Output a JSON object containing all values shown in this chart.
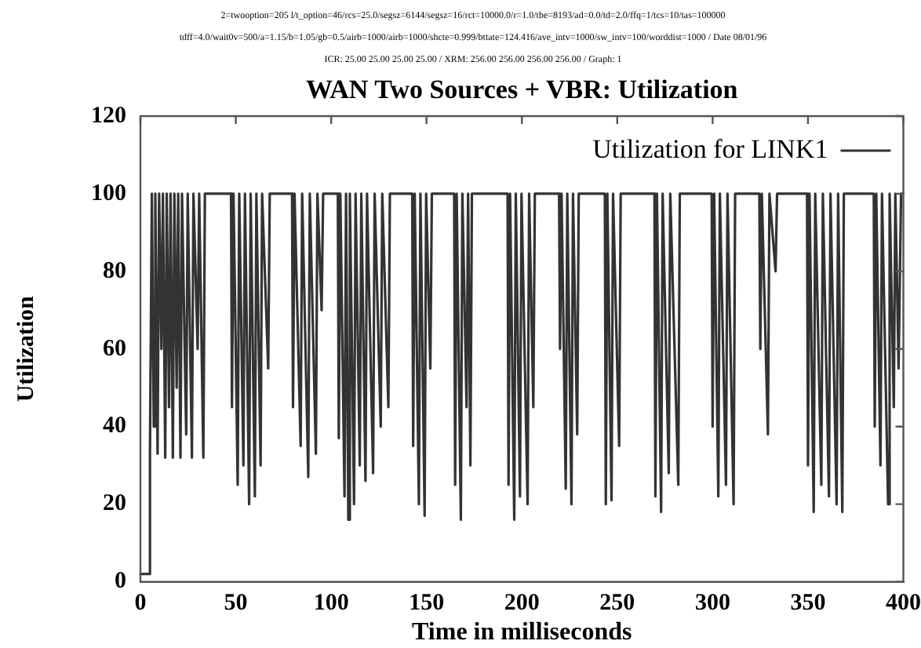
{
  "chart_data": {
    "type": "line",
    "title": "WAN Two Sources + VBR: Utilization",
    "annotations": [
      "2=twooption=205 l/t_option=46/rcs=25.0/segsz=6144/segsz=16/rct=10000.0/r=1.0/tbe=8193/ad=0.0/td=2.0/ffq=1/tcs=10/tas=100000",
      "tdff=4.0/wait0v=500/a=1.15/b=1.05/gb=0.5/airb=1000/airb=1000/shcte=0.999/bttate=124.416/ave_intv=1000/sw_intv=100/worddist=1000 / Date 08/01/96",
      "ICR: 25.00 25.00 25.00 25.00 / XRM: 256.00 256.00 256.00 256.00 / Graph: 1"
    ],
    "xlabel": "Time in milliseconds",
    "ylabel": "Utilization",
    "xlim": [
      0,
      400
    ],
    "xticks": [
      0,
      50,
      100,
      150,
      200,
      250,
      300,
      350,
      400
    ],
    "ylim": [
      0,
      120
    ],
    "yticks": [
      0,
      20,
      40,
      60,
      80,
      100,
      120
    ],
    "grid": false,
    "legend": "top right",
    "marker": "none",
    "line_style": "solid",
    "series": [
      {
        "name": "Utilization for LINK1",
        "color": "#333333",
        "x": [
          0,
          5,
          5,
          6,
          7,
          7.8,
          9,
          9.8,
          11,
          11.8,
          13,
          13.8,
          15,
          15.8,
          17,
          17.8,
          19,
          19.8,
          21,
          21.8,
          24,
          24.8,
          27,
          27.8,
          30,
          30.8,
          33,
          33.8,
          47.5,
          48,
          48.8,
          51,
          51.8,
          54,
          54.8,
          57,
          57.8,
          60,
          60.8,
          63,
          63.8,
          67,
          67.8,
          79.5,
          80,
          80.8,
          84,
          84.8,
          88,
          88.8,
          92,
          92.8,
          95,
          95.8,
          103.5,
          104,
          104.8,
          107,
          107.8,
          109,
          109.8,
          112,
          112.8,
          115,
          115.8,
          118,
          118.8,
          122,
          122.8,
          126,
          126.8,
          130,
          130.8,
          142.5,
          143,
          143.8,
          146,
          146.8,
          149,
          149.8,
          152,
          152.8,
          164.5,
          165,
          165.8,
          168,
          168.8,
          171,
          171.8,
          173,
          173.8,
          192.5,
          193,
          193.8,
          196,
          196.8,
          199,
          199.8,
          203,
          203.8,
          206,
          206.8,
          219.5,
          220,
          220.8,
          223,
          223.8,
          226,
          226.8,
          229,
          229.8,
          243.5,
          244,
          244.8,
          247,
          247.8,
          251,
          251.8,
          269.5,
          270,
          270.8,
          273,
          273.8,
          277,
          277.8,
          282,
          282.8,
          299.5,
          300,
          300.8,
          303,
          303.8,
          307,
          307.8,
          311,
          311.8,
          324.5,
          325,
          325.8,
          329,
          329.8,
          333,
          333.8,
          349.5,
          350,
          350.8,
          353,
          353.8,
          357,
          357.8,
          361,
          361.8,
          365,
          365.8,
          368,
          368.8,
          384.5,
          385,
          385.8,
          388,
          388.8,
          392,
          392.8,
          395,
          395.8,
          397.5,
          398.8,
          400
        ],
        "values": [
          2,
          2,
          33,
          100,
          40,
          100,
          33,
          100,
          60,
          100,
          32,
          100,
          45,
          100,
          32,
          100,
          50,
          100,
          32,
          100,
          38,
          100,
          32,
          100,
          60,
          100,
          32,
          100,
          100,
          45,
          100,
          25,
          100,
          30,
          100,
          20,
          100,
          22,
          100,
          30,
          100,
          55,
          100,
          100,
          45,
          100,
          35,
          100,
          27,
          100,
          33,
          100,
          70,
          100,
          100,
          37,
          100,
          22,
          100,
          16,
          100,
          20,
          100,
          30,
          100,
          26,
          100,
          28,
          100,
          40,
          100,
          45,
          100,
          100,
          35,
          100,
          20,
          100,
          17,
          100,
          55,
          100,
          100,
          25,
          100,
          16,
          100,
          45,
          100,
          30,
          100,
          100,
          25,
          100,
          16,
          100,
          22,
          100,
          20,
          100,
          45,
          100,
          100,
          60,
          100,
          24,
          100,
          20,
          100,
          38,
          100,
          100,
          20,
          100,
          21,
          100,
          35,
          100,
          100,
          22,
          100,
          18,
          100,
          28,
          100,
          25,
          100,
          100,
          40,
          100,
          22,
          100,
          25,
          100,
          20,
          100,
          100,
          60,
          100,
          38,
          100,
          80,
          100,
          100,
          30,
          100,
          18,
          100,
          25,
          100,
          22,
          100,
          20,
          100,
          18,
          100,
          100,
          40,
          100,
          30,
          100,
          20,
          100,
          45,
          100,
          55,
          100,
          100
        ]
      }
    ]
  }
}
